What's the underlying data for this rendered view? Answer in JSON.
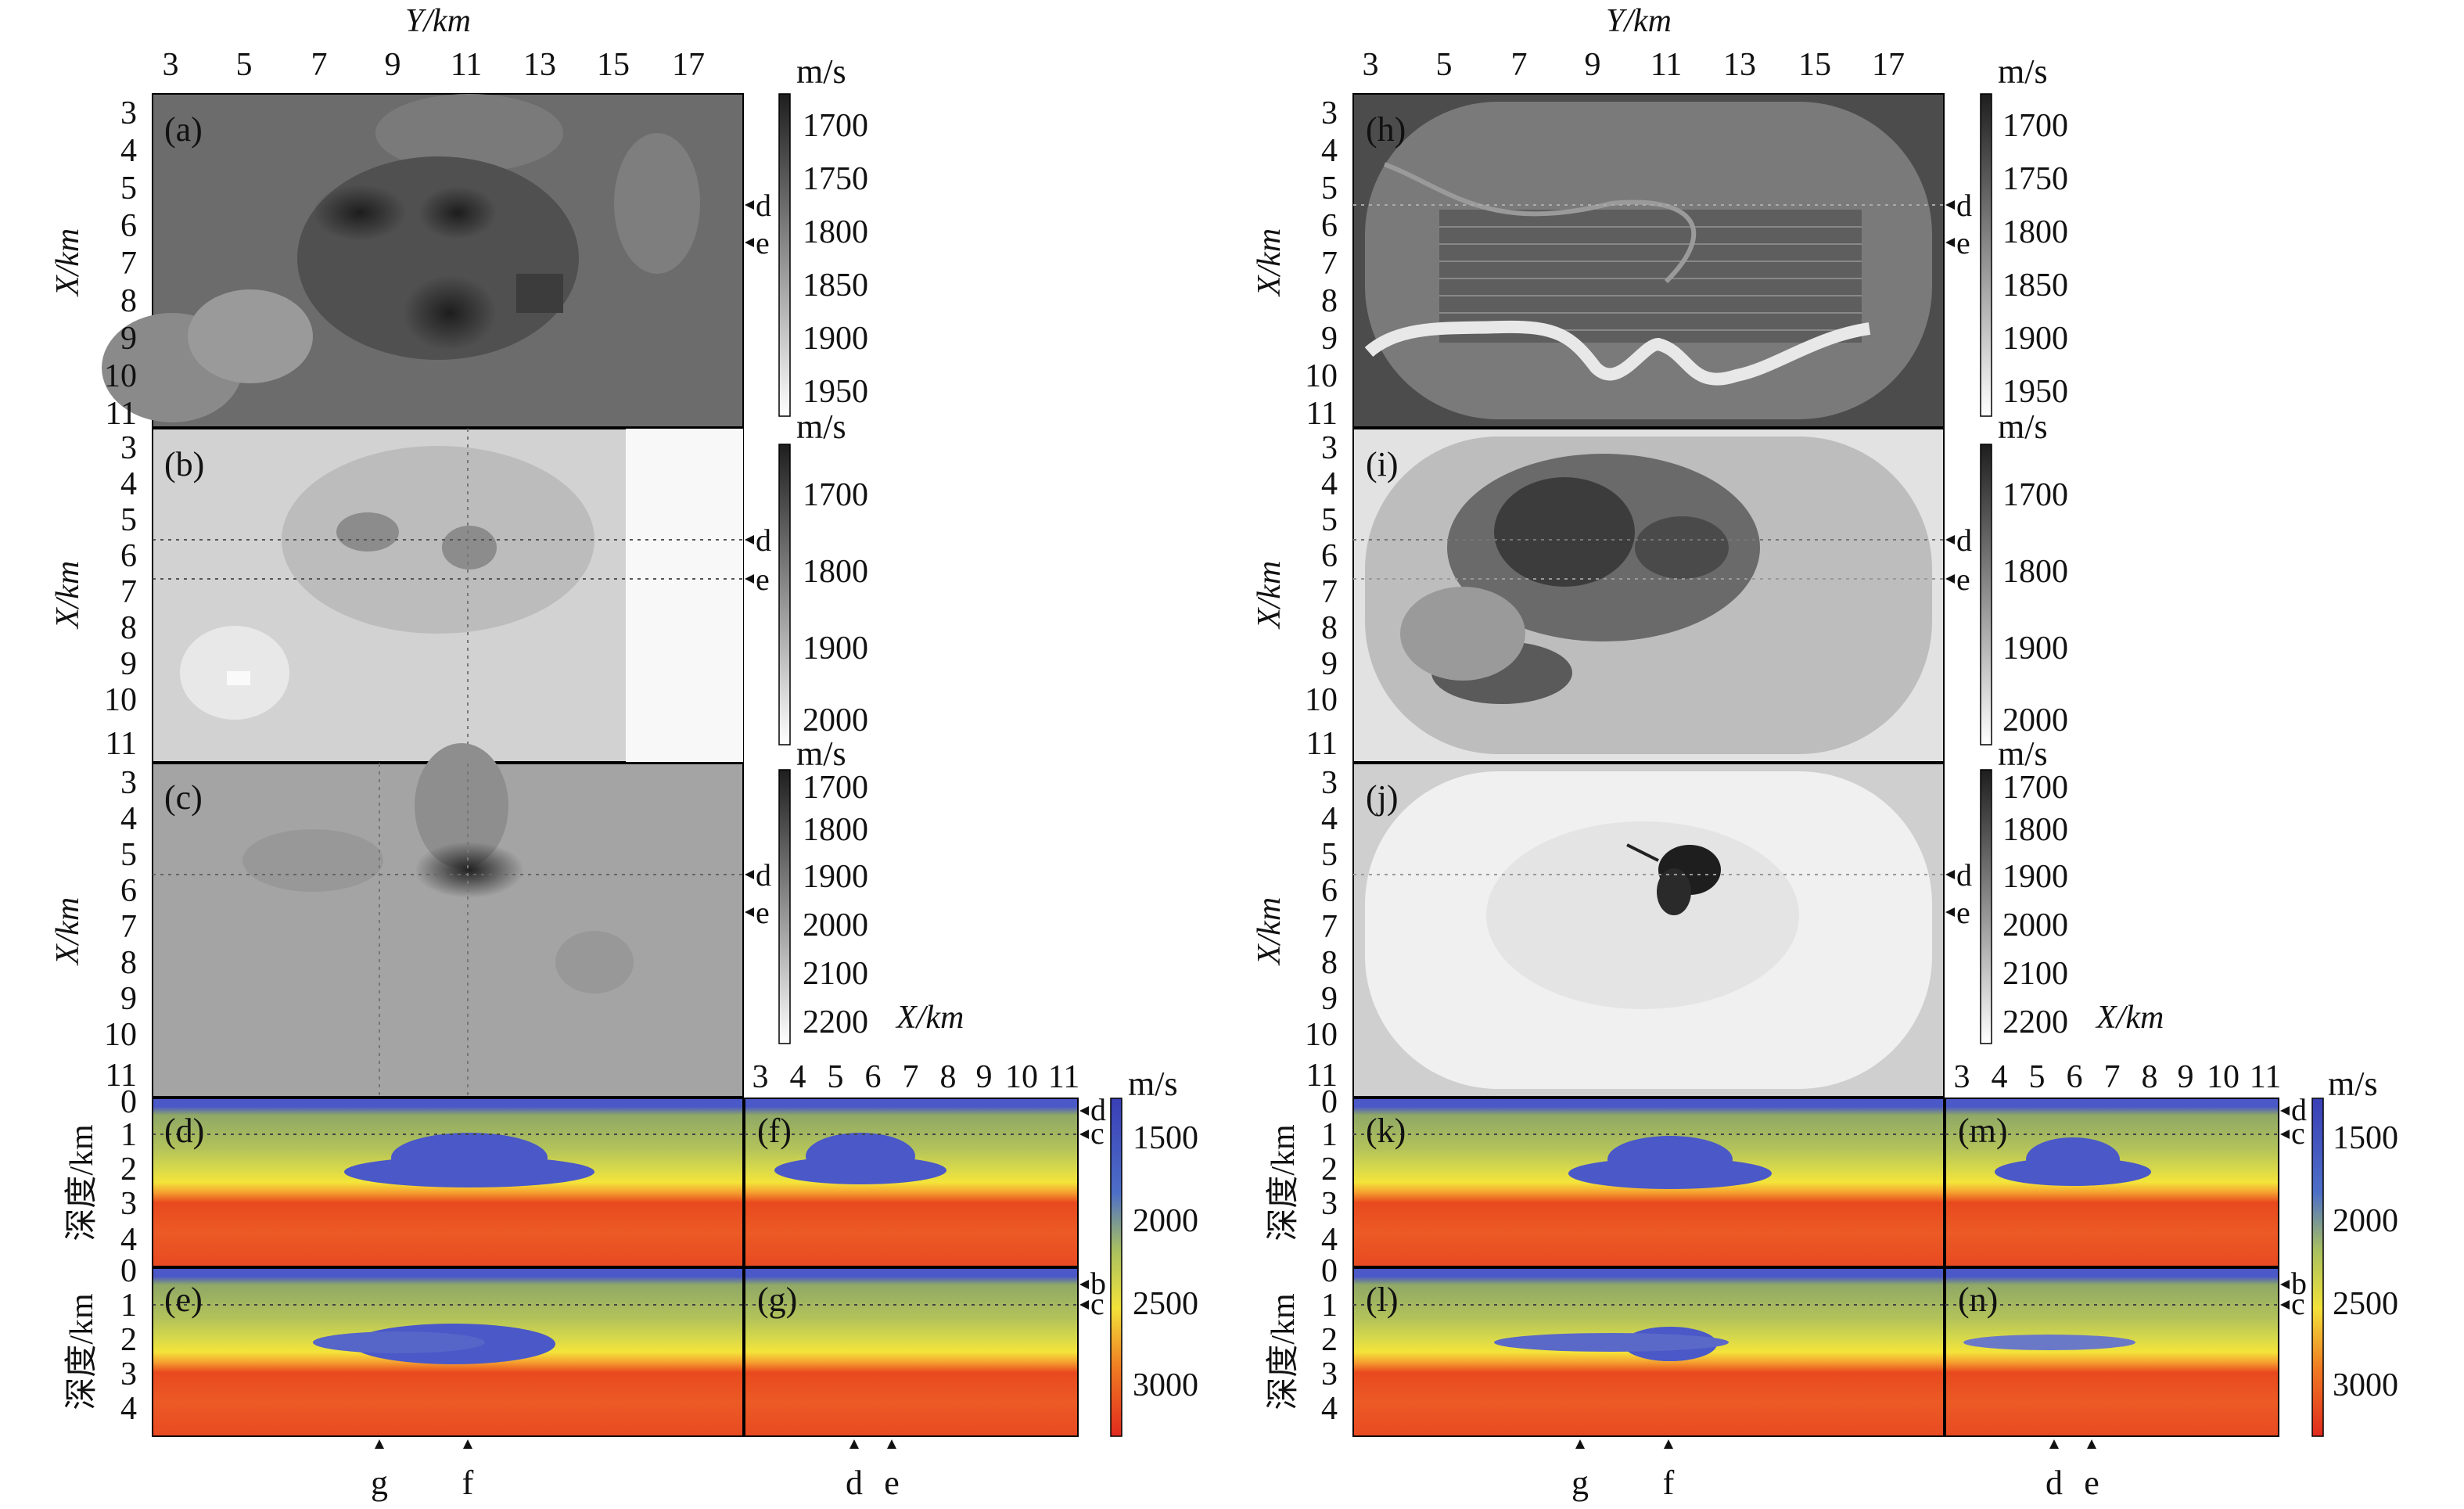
{
  "figure": {
    "axis_titles": {
      "y_km": "Y/km",
      "x_km": "X/km",
      "depth_km": "深度/km",
      "unit": "m/s"
    },
    "y_ticks": [
      "3",
      "5",
      "7",
      "9",
      "11",
      "13",
      "15",
      "17"
    ],
    "x_ticks": [
      "3",
      "4",
      "5",
      "6",
      "7",
      "8",
      "9",
      "10",
      "11"
    ],
    "depth_ticks": [
      "0",
      "1",
      "2",
      "3",
      "4"
    ],
    "panels_left_maps": [
      "(a)",
      "(b)",
      "(c)"
    ],
    "panels_right_maps": [
      "(h)",
      "(i)",
      "(j)"
    ],
    "panels_left_sections": [
      "(d)",
      "(e)",
      "(f)",
      "(g)"
    ],
    "panels_right_sections": [
      "(k)",
      "(l)",
      "(m)",
      "(n)"
    ],
    "colorbar_a": [
      "1700",
      "1750",
      "1800",
      "1850",
      "1900",
      "1950"
    ],
    "colorbar_b": [
      "1700",
      "1800",
      "1900",
      "2000"
    ],
    "colorbar_c": [
      "1700",
      "1800",
      "1900",
      "2000",
      "2100",
      "2200"
    ],
    "colorbar_section": [
      "1500",
      "2000",
      "2500",
      "3000"
    ],
    "markers": {
      "d": "d",
      "e": "e",
      "c": "c",
      "b": "b",
      "f": "f",
      "g": "g"
    },
    "colors": {
      "blue": "#4a58c8",
      "green": "#a9c060",
      "yellow": "#f2e23a",
      "orange": "#f07a22",
      "red": "#e23a1e"
    }
  }
}
